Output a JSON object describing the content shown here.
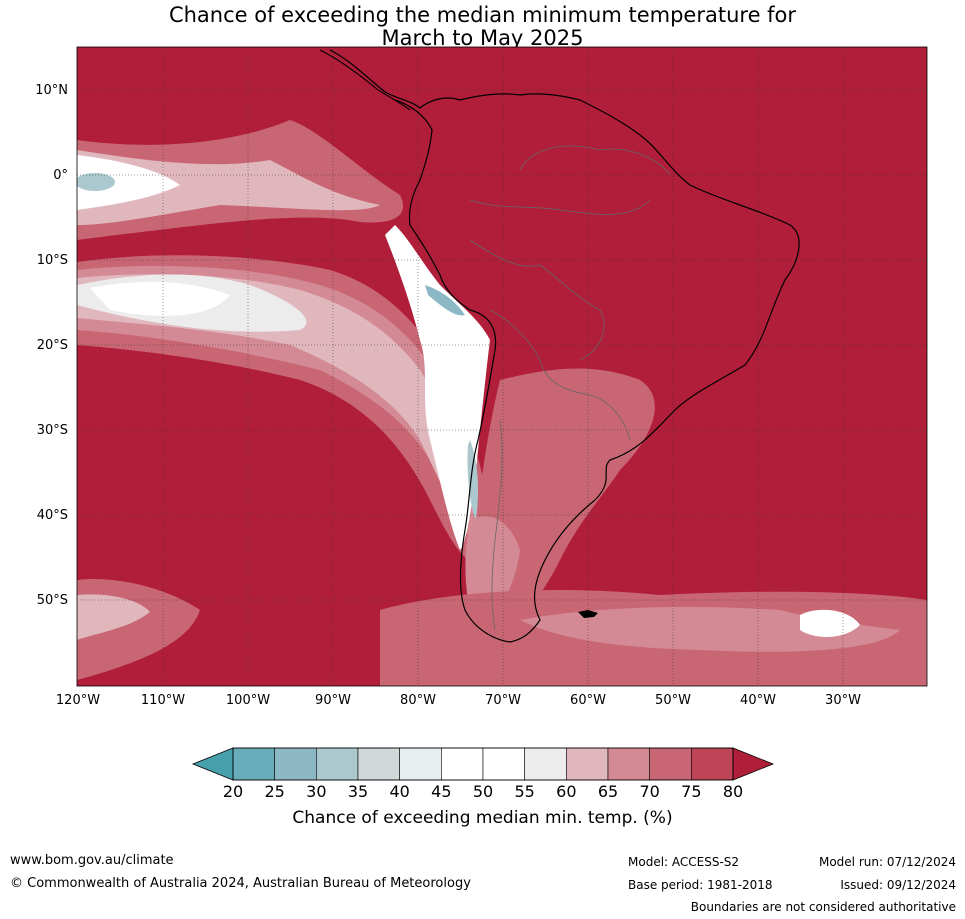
{
  "title_line1": "Chance of exceeding the median minimum temperature for",
  "title_line2": "March to May 2025",
  "map": {
    "lat_labels": [
      "10°N",
      "0°",
      "10°S",
      "20°S",
      "30°S",
      "40°S",
      "50°S"
    ],
    "lon_labels": [
      "120°W",
      "110°W",
      "100°W",
      "90°W",
      "80°W",
      "70°W",
      "60°W",
      "50°W",
      "40°W",
      "30°W"
    ],
    "background_color": "#b01e3a"
  },
  "colorbar": {
    "ticks": [
      "20",
      "25",
      "30",
      "35",
      "40",
      "45",
      "50",
      "55",
      "60",
      "65",
      "70",
      "75",
      "80"
    ],
    "low_color": "#48a0ad",
    "high_color": "#b01e3a",
    "bin_colors": [
      "#6aadba",
      "#8cb8c5",
      "#acc8cf",
      "#d1d8da",
      "#e8eef0",
      "#ffffff",
      "#ffffff",
      "#ececec",
      "#e1b7be",
      "#d48a95",
      "#c96673",
      "#bf4456"
    ],
    "label": "Chance of exceeding median min. temp. (%)"
  },
  "footer": {
    "website": "www.bom.gov.au/climate",
    "copyright": "© Commonwealth of Australia 2024, Australian Bureau of Meteorology",
    "model": "Model: ACCESS-S2",
    "base_period": "Base period: 1981-2018",
    "model_run": "Model run: 07/12/2024",
    "issued": "Issued: 09/12/2024",
    "disclaimer": "Boundaries are not considered authoritative"
  }
}
